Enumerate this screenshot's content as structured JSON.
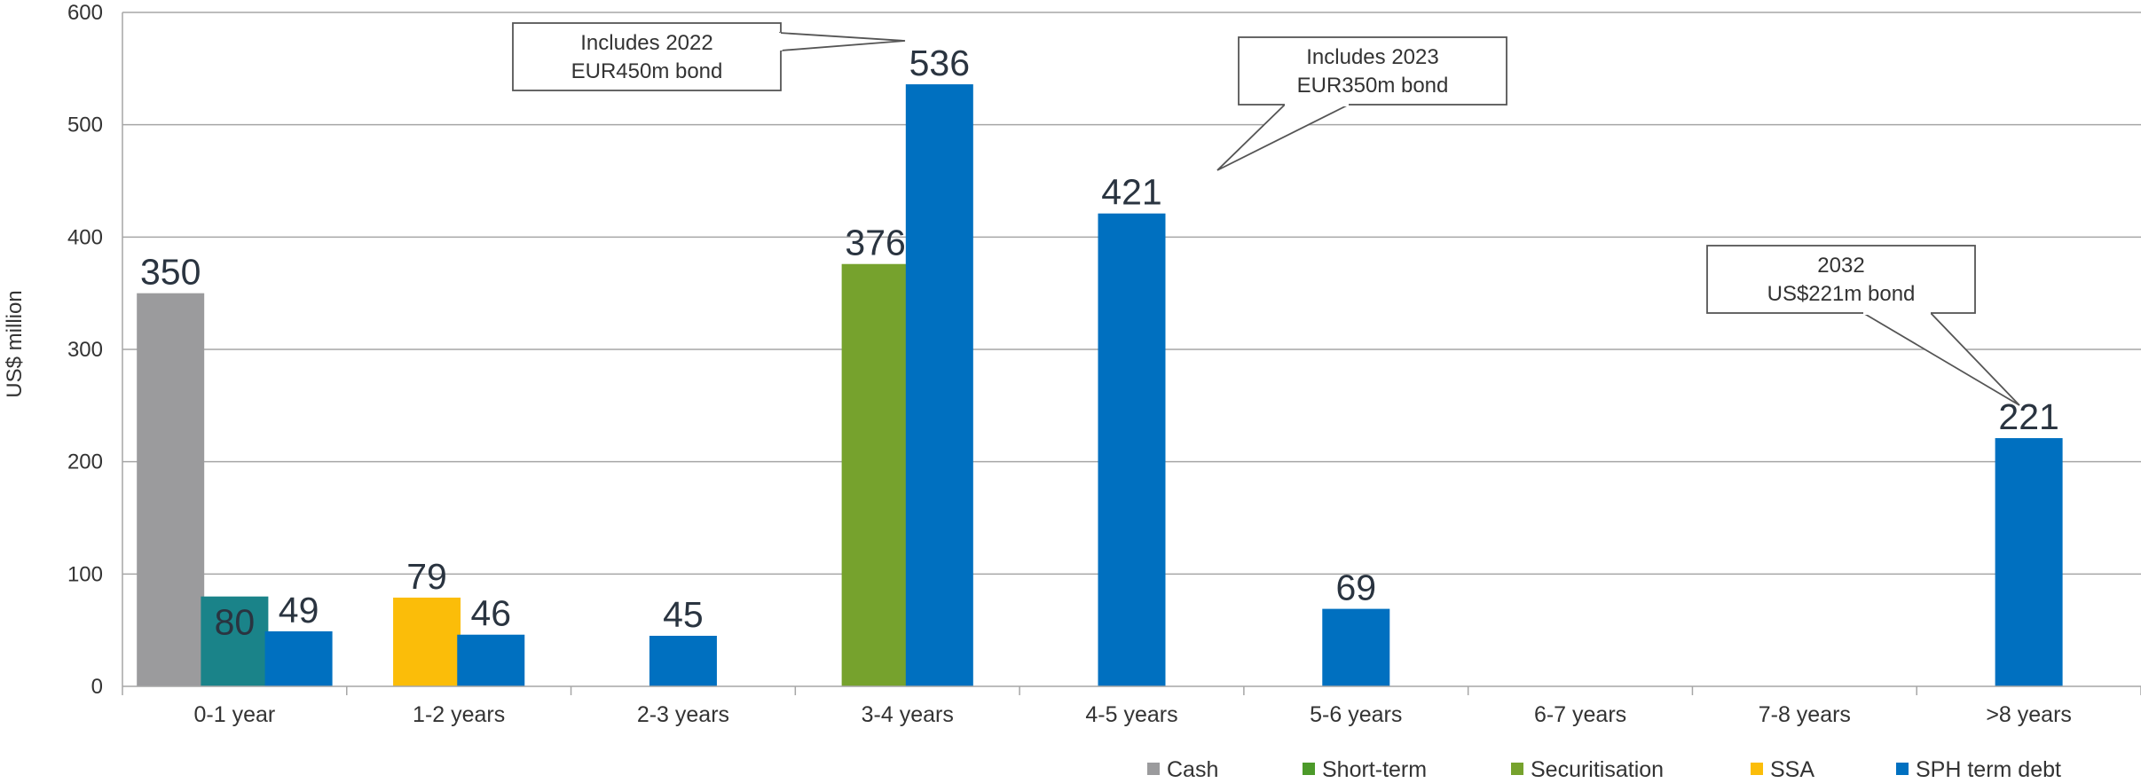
{
  "chart_data": {
    "type": "bar",
    "title": "",
    "xlabel": "",
    "ylabel": "US$ million",
    "ylim": [
      0,
      600
    ],
    "yticks": [
      0,
      100,
      200,
      300,
      400,
      500,
      600
    ],
    "grid": true,
    "legend_position": "bottom-right",
    "categories": [
      "0-1 year",
      "1-2 years",
      "2-3 years",
      "3-4 years",
      "4-5 years",
      "5-6 years",
      "6-7 years",
      "7-8 years",
      ">8 years"
    ],
    "series": [
      {
        "name": "Cash",
        "color": "#9b9b9d",
        "values": [
          350,
          null,
          null,
          null,
          null,
          null,
          null,
          null,
          null
        ]
      },
      {
        "name": "Short-term",
        "color": "#1a8389",
        "legend_color": "#4c9a2a",
        "values": [
          80,
          null,
          null,
          null,
          null,
          null,
          null,
          null,
          null
        ]
      },
      {
        "name": "Securitisation",
        "color": "#76a22d",
        "values": [
          null,
          null,
          null,
          376,
          null,
          null,
          null,
          null,
          null
        ]
      },
      {
        "name": "SSA",
        "color": "#fbbd09",
        "values": [
          null,
          79,
          null,
          null,
          null,
          null,
          null,
          null,
          null
        ]
      },
      {
        "name": "SPH term debt",
        "color": "#0070c0",
        "values": [
          49,
          46,
          45,
          536,
          421,
          69,
          null,
          null,
          221
        ]
      }
    ],
    "annotations": [
      {
        "lines": [
          "Includes 2022",
          "EUR450m bond"
        ],
        "category": "3-4 years",
        "series": "SPH term debt"
      },
      {
        "lines": [
          "Includes 2023",
          "EUR350m bond"
        ],
        "category": "4-5 years",
        "series": "SPH term debt"
      },
      {
        "lines": [
          "2032",
          "US$221m bond"
        ],
        "category": ">8 years",
        "series": "SPH term debt"
      }
    ]
  }
}
